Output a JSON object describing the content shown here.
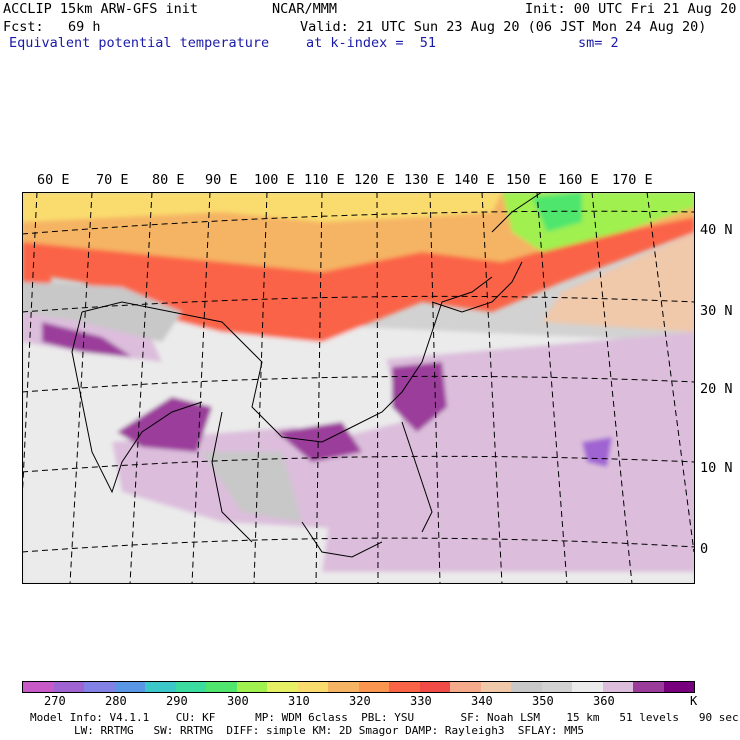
{
  "header": {
    "line1_left": "ACCLIP 15km ARW-GFS init",
    "line1_mid": "NCAR/MMM",
    "line1_right": "Init: 00 UTC Fri 21 Aug 20",
    "line2_left": "Fcst:   69 h",
    "line2_right": "Valid: 21 UTC Sun 23 Aug 20 (06 JST Mon 24 Aug 20)",
    "line3_left": "Equivalent potential temperature",
    "line3_mid": "at k-index =  51",
    "line3_right": "sm= 2"
  },
  "map": {
    "lon_labels": [
      "60 E",
      "70 E",
      "80 E",
      "90 E",
      "100 E",
      "110 E",
      "120 E",
      "130 E",
      "140 E",
      "150 E",
      "160 E",
      "170 E"
    ],
    "lat_labels": [
      "40 N",
      "30 N",
      "20 N",
      "10 N",
      "0"
    ]
  },
  "colorbar": {
    "colors": [
      "#c85ac8",
      "#a064d2",
      "#8282e6",
      "#5a96e6",
      "#3cc8c8",
      "#3cdca0",
      "#50e66e",
      "#a0f050",
      "#e6f064",
      "#fadc6e",
      "#f5b464",
      "#fa9650",
      "#fa6446",
      "#f04b46",
      "#f5aa8c",
      "#f0c8aa",
      "#c8c8c8",
      "#d2d2d2",
      "#ebebeb",
      "#dcbedc",
      "#9b3c9b",
      "#78007d"
    ],
    "labels": [
      "270",
      "280",
      "290",
      "300",
      "310",
      "320",
      "330",
      "340",
      "350",
      "360"
    ],
    "unit": "K"
  },
  "footer": {
    "line1": "Model Info: V4.1.1    CU: KF      MP: WDM 6class  PBL: YSU       SF: Noah LSM    15 km   51 levels   90 sec",
    "line2": "LW: RRTMG   SW: RRTMG  DIFF: simple KM: 2D Smagor DAMP: Rayleigh3  SFLAY: MM5"
  }
}
